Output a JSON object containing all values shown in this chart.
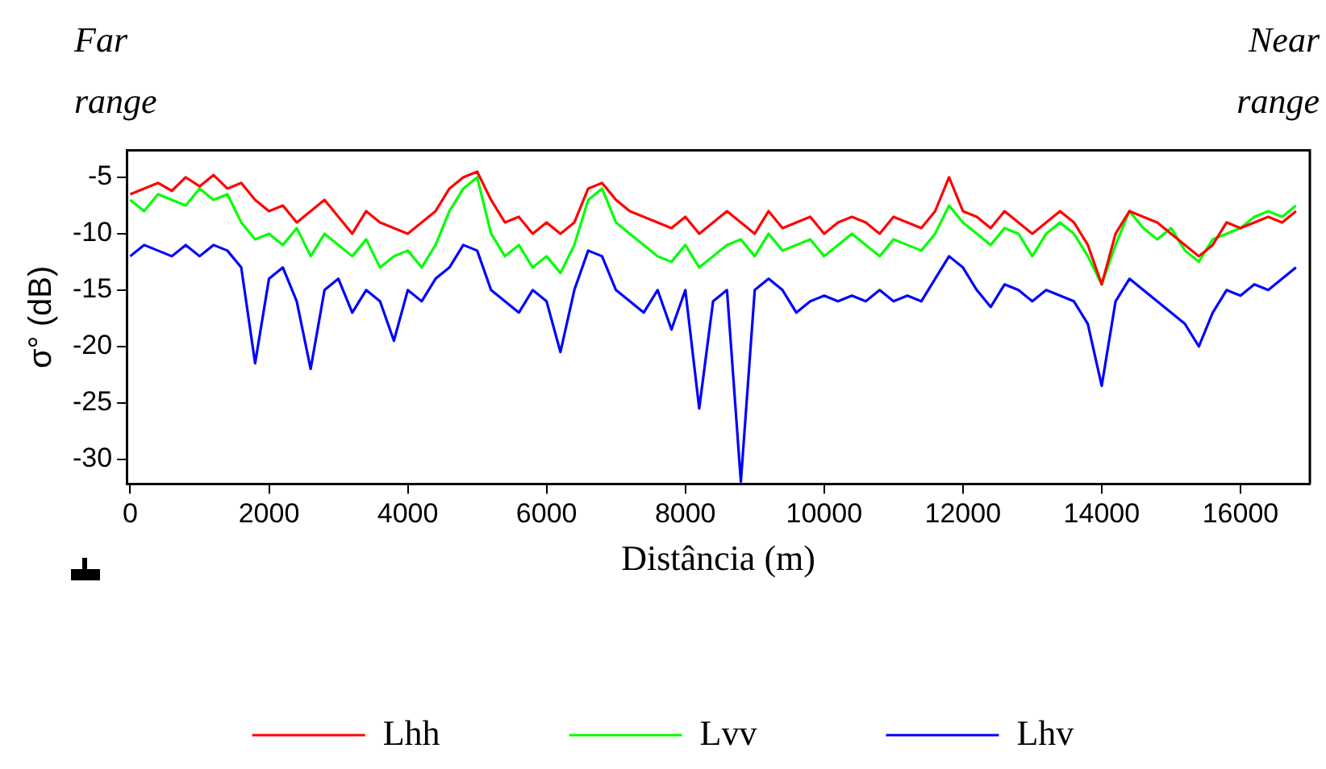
{
  "chart_data": {
    "type": "line",
    "xlabel": "Distância (m)",
    "ylabel": "σ° (dB)",
    "annotations": [
      "Far range",
      "Near range"
    ],
    "xlim": [
      -50,
      17000
    ],
    "xticks": [
      0,
      2000,
      4000,
      6000,
      8000,
      10000,
      12000,
      14000,
      16000
    ],
    "ylim": [
      -32.2,
      -2.6
    ],
    "yticks": [
      -5,
      -10,
      -15,
      -20,
      -25,
      -30
    ],
    "grid": false,
    "legend": "bottom",
    "marker": "none",
    "line_style": "solid",
    "x": [
      0,
      200,
      400,
      600,
      800,
      1000,
      1200,
      1400,
      1600,
      1800,
      2000,
      2200,
      2400,
      2600,
      2800,
      3000,
      3200,
      3400,
      3600,
      3800,
      4000,
      4200,
      4400,
      4600,
      4800,
      5000,
      5200,
      5400,
      5600,
      5800,
      6000,
      6200,
      6400,
      6600,
      6800,
      7000,
      7200,
      7400,
      7600,
      7800,
      8000,
      8200,
      8400,
      8600,
      8800,
      9000,
      9200,
      9400,
      9600,
      9800,
      10000,
      10200,
      10400,
      10600,
      10800,
      11000,
      11200,
      11400,
      11600,
      11800,
      12000,
      12200,
      12400,
      12600,
      12800,
      13000,
      13200,
      13400,
      13600,
      13800,
      14000,
      14200,
      14400,
      14600,
      14800,
      15000,
      15200,
      15400,
      15600,
      15800,
      16000,
      16200,
      16400,
      16600,
      16800
    ],
    "series": [
      {
        "name": "Lhh",
        "color": "#ff0000",
        "values": [
          -6.5,
          -6,
          -5.5,
          -6.2,
          -5,
          -5.8,
          -4.8,
          -6,
          -5.5,
          -7,
          -8,
          -7.5,
          -9,
          -8,
          -7,
          -8.5,
          -10,
          -8,
          -9,
          -9.5,
          -10,
          -9,
          -8,
          -6,
          -5,
          -4.5,
          -7,
          -9,
          -8.5,
          -10,
          -9,
          -10,
          -9,
          -6,
          -5.5,
          -7,
          -8,
          -8.5,
          -9,
          -9.5,
          -8.5,
          -10,
          -9,
          -8,
          -9,
          -10,
          -8,
          -9.5,
          -9,
          -8.5,
          -10,
          -9,
          -8.5,
          -9,
          -10,
          -8.5,
          -9,
          -9.5,
          -8,
          -5,
          -8,
          -8.5,
          -9.5,
          -8,
          -9,
          -10,
          -9,
          -8,
          -9,
          -11,
          -14.5,
          -10,
          -8,
          -8.5,
          -9,
          -10,
          -11,
          -12,
          -11,
          -9,
          -9.5,
          -9,
          -8.5,
          -9,
          -8
        ]
      },
      {
        "name": "Lvv",
        "color": "#00ff00",
        "values": [
          -7,
          -8,
          -6.5,
          -7,
          -7.5,
          -6,
          -7,
          -6.5,
          -9,
          -10.5,
          -10,
          -11,
          -9.5,
          -12,
          -10,
          -11,
          -12,
          -10.5,
          -13,
          -12,
          -11.5,
          -13,
          -11,
          -8,
          -6,
          -5,
          -10,
          -12,
          -11,
          -13,
          -12,
          -13.5,
          -11,
          -7,
          -6,
          -9,
          -10,
          -11,
          -12,
          -12.5,
          -11,
          -13,
          -12,
          -11,
          -10.5,
          -12,
          -10,
          -11.5,
          -11,
          -10.5,
          -12,
          -11,
          -10,
          -11,
          -12,
          -10.5,
          -11,
          -11.5,
          -10,
          -7.5,
          -9,
          -10,
          -11,
          -9.5,
          -10,
          -12,
          -10,
          -9,
          -10,
          -12,
          -14.5,
          -11,
          -8,
          -9.5,
          -10.5,
          -9.5,
          -11.5,
          -12.5,
          -10.5,
          -10,
          -9.5,
          -8.5,
          -8,
          -8.5,
          -7.5
        ]
      },
      {
        "name": "Lhv",
        "color": "#0000ff",
        "values": [
          -12,
          -11,
          -11.5,
          -12,
          -11,
          -12,
          -11,
          -11.5,
          -13,
          -21.5,
          -14,
          -13,
          -16,
          -22,
          -15,
          -14,
          -17,
          -15,
          -16,
          -19.5,
          -15,
          -16,
          -14,
          -13,
          -11,
          -11.5,
          -15,
          -16,
          -17,
          -15,
          -16,
          -20.5,
          -15,
          -11.5,
          -12,
          -15,
          -16,
          -17,
          -15,
          -18.5,
          -15,
          -25.5,
          -16,
          -15,
          -32,
          -15,
          -14,
          -15,
          -17,
          -16,
          -15.5,
          -16,
          -15.5,
          -16,
          -15,
          -16,
          -15.5,
          -16,
          -14,
          -12,
          -13,
          -15,
          -16.5,
          -14.5,
          -15,
          -16,
          -15,
          -15.5,
          -16,
          -18,
          -23.5,
          -16,
          -14,
          -15,
          -16,
          -17,
          -18,
          -20,
          -17,
          -15,
          -15.5,
          -14.5,
          -15,
          -14,
          -13
        ]
      }
    ]
  }
}
